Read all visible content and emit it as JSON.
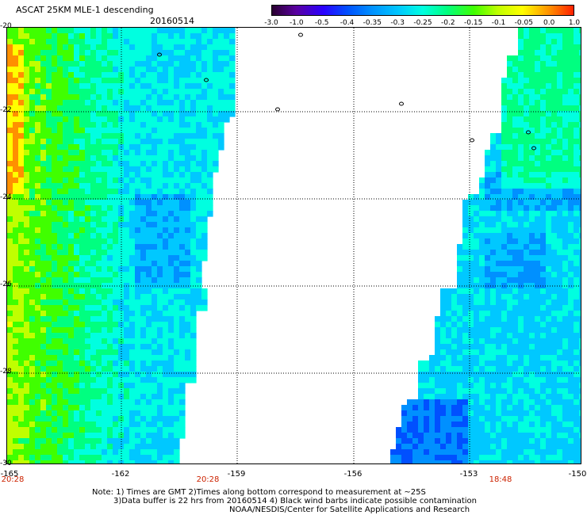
{
  "header": {
    "title": "ASCAT 25KM MLE-1 descending",
    "date": "20160514"
  },
  "colorbar": {
    "labels": [
      "-3.0",
      "-1.0",
      "-0.5",
      "-0.4",
      "-0.35",
      "-0.3",
      "-0.25",
      "-0.2",
      "-0.15",
      "-0.1",
      "-0.05",
      "0.0",
      "1.0"
    ],
    "colors": [
      "#2a0030",
      "#5a00a0",
      "#2a00ff",
      "#0050ff",
      "#0090ff",
      "#00c8ff",
      "#00ffe0",
      "#00ff80",
      "#40ff00",
      "#c0ff00",
      "#ffff00",
      "#ff9000",
      "#ff2000"
    ]
  },
  "map": {
    "y_axis": [
      "-20",
      "-22",
      "-24",
      "-26",
      "-28",
      "-30"
    ],
    "x_axis": [
      "-165",
      "-162",
      "-159",
      "-156",
      "-153",
      "-150"
    ],
    "times": [
      "20:28",
      "20:28",
      "18:48"
    ]
  },
  "notes": {
    "line1": "Note: 1) Times are GMT 2)Times along bottom correspond to measurement at ~25S",
    "line2": "3)Data buffer is 22 hrs from 20160514 4) Black wind barbs indicate possible contamination",
    "line3": "NOAA/NESDIS/Center for Satellite Applications and Research"
  }
}
